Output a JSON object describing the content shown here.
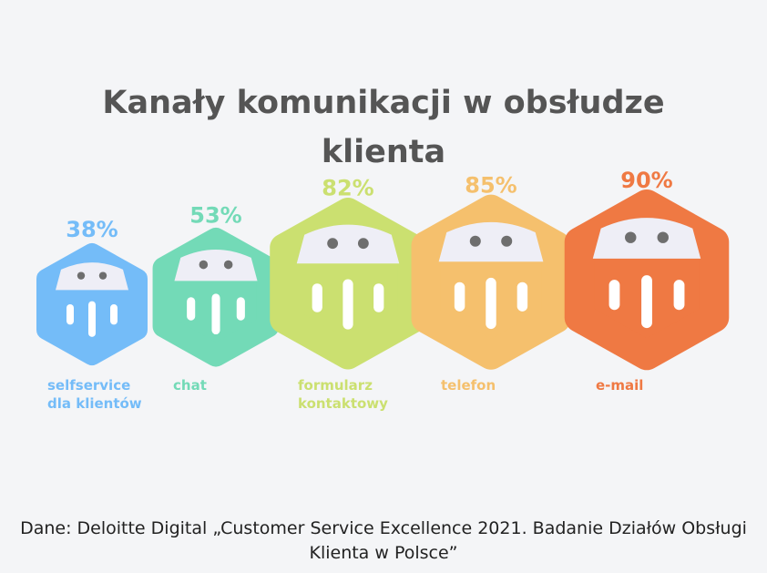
{
  "title_line1": "Kanały komunikacji w obsłudze",
  "title_line2": "klienta",
  "source_line1": "Dane: Deloitte Digital „Customer Service Excellence 2021. Badanie Działów Obsługi",
  "source_line2": "Klienta w Polsce”",
  "chart_data": {
    "type": "bar",
    "unit": "%",
    "categories": [
      "selfservice dla klientów",
      "chat",
      "formularz kontaktowy",
      "telefon",
      "e-mail"
    ],
    "category_lines": [
      [
        "selfservice",
        "dla klientów"
      ],
      [
        "chat"
      ],
      [
        "formularz",
        "kontaktowy"
      ],
      [
        "telefon"
      ],
      [
        "e-mail"
      ]
    ],
    "values": [
      38,
      53,
      82,
      85,
      90
    ],
    "value_labels": [
      "38%",
      "53%",
      "82%",
      "85%",
      "90%"
    ],
    "colors": [
      "#74bcf8",
      "#73dab7",
      "#cbe070",
      "#f5c06d",
      "#ef7943"
    ]
  }
}
